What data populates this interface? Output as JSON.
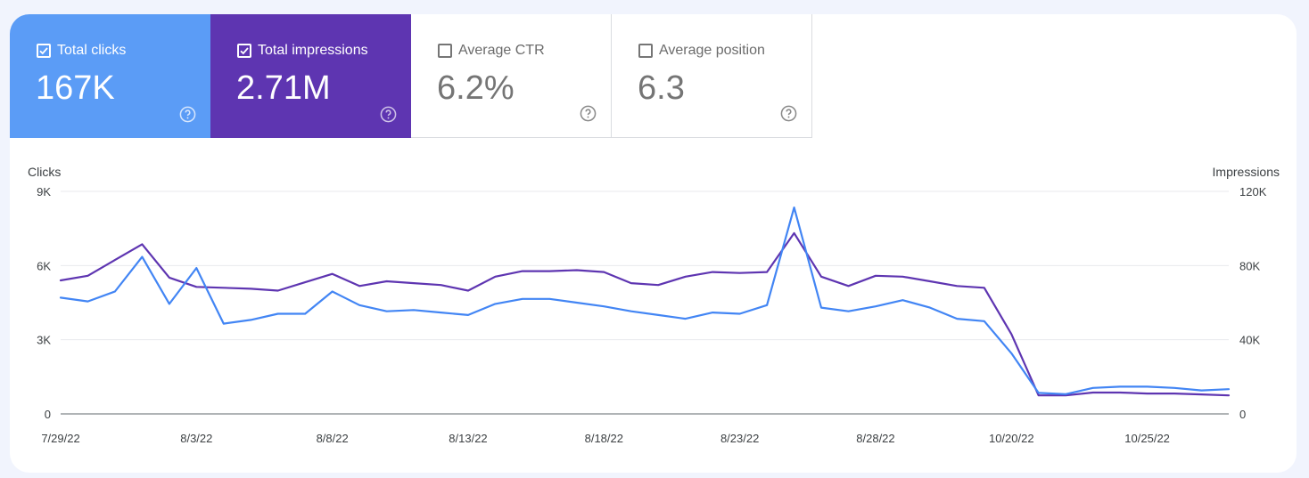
{
  "metrics": [
    {
      "label": "Total clicks",
      "value": "167K",
      "checked": true
    },
    {
      "label": "Total impressions",
      "value": "2.71M",
      "checked": true
    },
    {
      "label": "Average CTR",
      "value": "6.2%",
      "checked": false
    },
    {
      "label": "Average position",
      "value": "6.3",
      "checked": false
    }
  ],
  "colors": {
    "clicks": "#4285f4",
    "impressions": "#5e35b1"
  },
  "chart_data": {
    "type": "line",
    "ylabel_left": "Clicks",
    "ylabel_right": "Impressions",
    "y_left_ticks": [
      "0",
      "3K",
      "6K",
      "9K"
    ],
    "y_right_ticks": [
      "0",
      "40K",
      "80K",
      "120K"
    ],
    "ylim_left": [
      0,
      9000
    ],
    "ylim_right": [
      0,
      120000
    ],
    "x_tick_labels": [
      "7/29/22",
      "8/3/22",
      "8/8/22",
      "8/13/22",
      "8/18/22",
      "8/23/22",
      "8/28/22",
      "10/20/22",
      "10/25/22"
    ],
    "x_tick_indices": [
      0,
      5,
      10,
      15,
      20,
      25,
      30,
      35,
      40
    ],
    "grid": true,
    "series": [
      {
        "name": "Clicks",
        "axis": "left",
        "values": [
          4700,
          4550,
          4950,
          6350,
          4450,
          5900,
          3650,
          3800,
          4050,
          4050,
          4950,
          4400,
          4150,
          4200,
          4100,
          4000,
          4450,
          4650,
          4650,
          4500,
          4350,
          4150,
          4000,
          3850,
          4100,
          4050,
          4400,
          8350,
          4300,
          4150,
          4350,
          4600,
          4300,
          3850,
          3750,
          2450,
          850,
          800,
          1050,
          1100,
          1100,
          1050,
          950,
          1000
        ]
      },
      {
        "name": "Impressions",
        "axis": "right",
        "values": [
          72000,
          74500,
          83000,
          91500,
          73500,
          68500,
          68000,
          67500,
          66500,
          71000,
          75500,
          69000,
          71500,
          70500,
          69500,
          66500,
          74000,
          77000,
          77000,
          77500,
          76500,
          70500,
          69500,
          74000,
          76500,
          76000,
          76500,
          97500,
          74000,
          69000,
          74500,
          74000,
          71500,
          69000,
          68000,
          43000,
          10000,
          10000,
          11500,
          11500,
          11000,
          11000,
          10500,
          10000
        ]
      }
    ]
  }
}
